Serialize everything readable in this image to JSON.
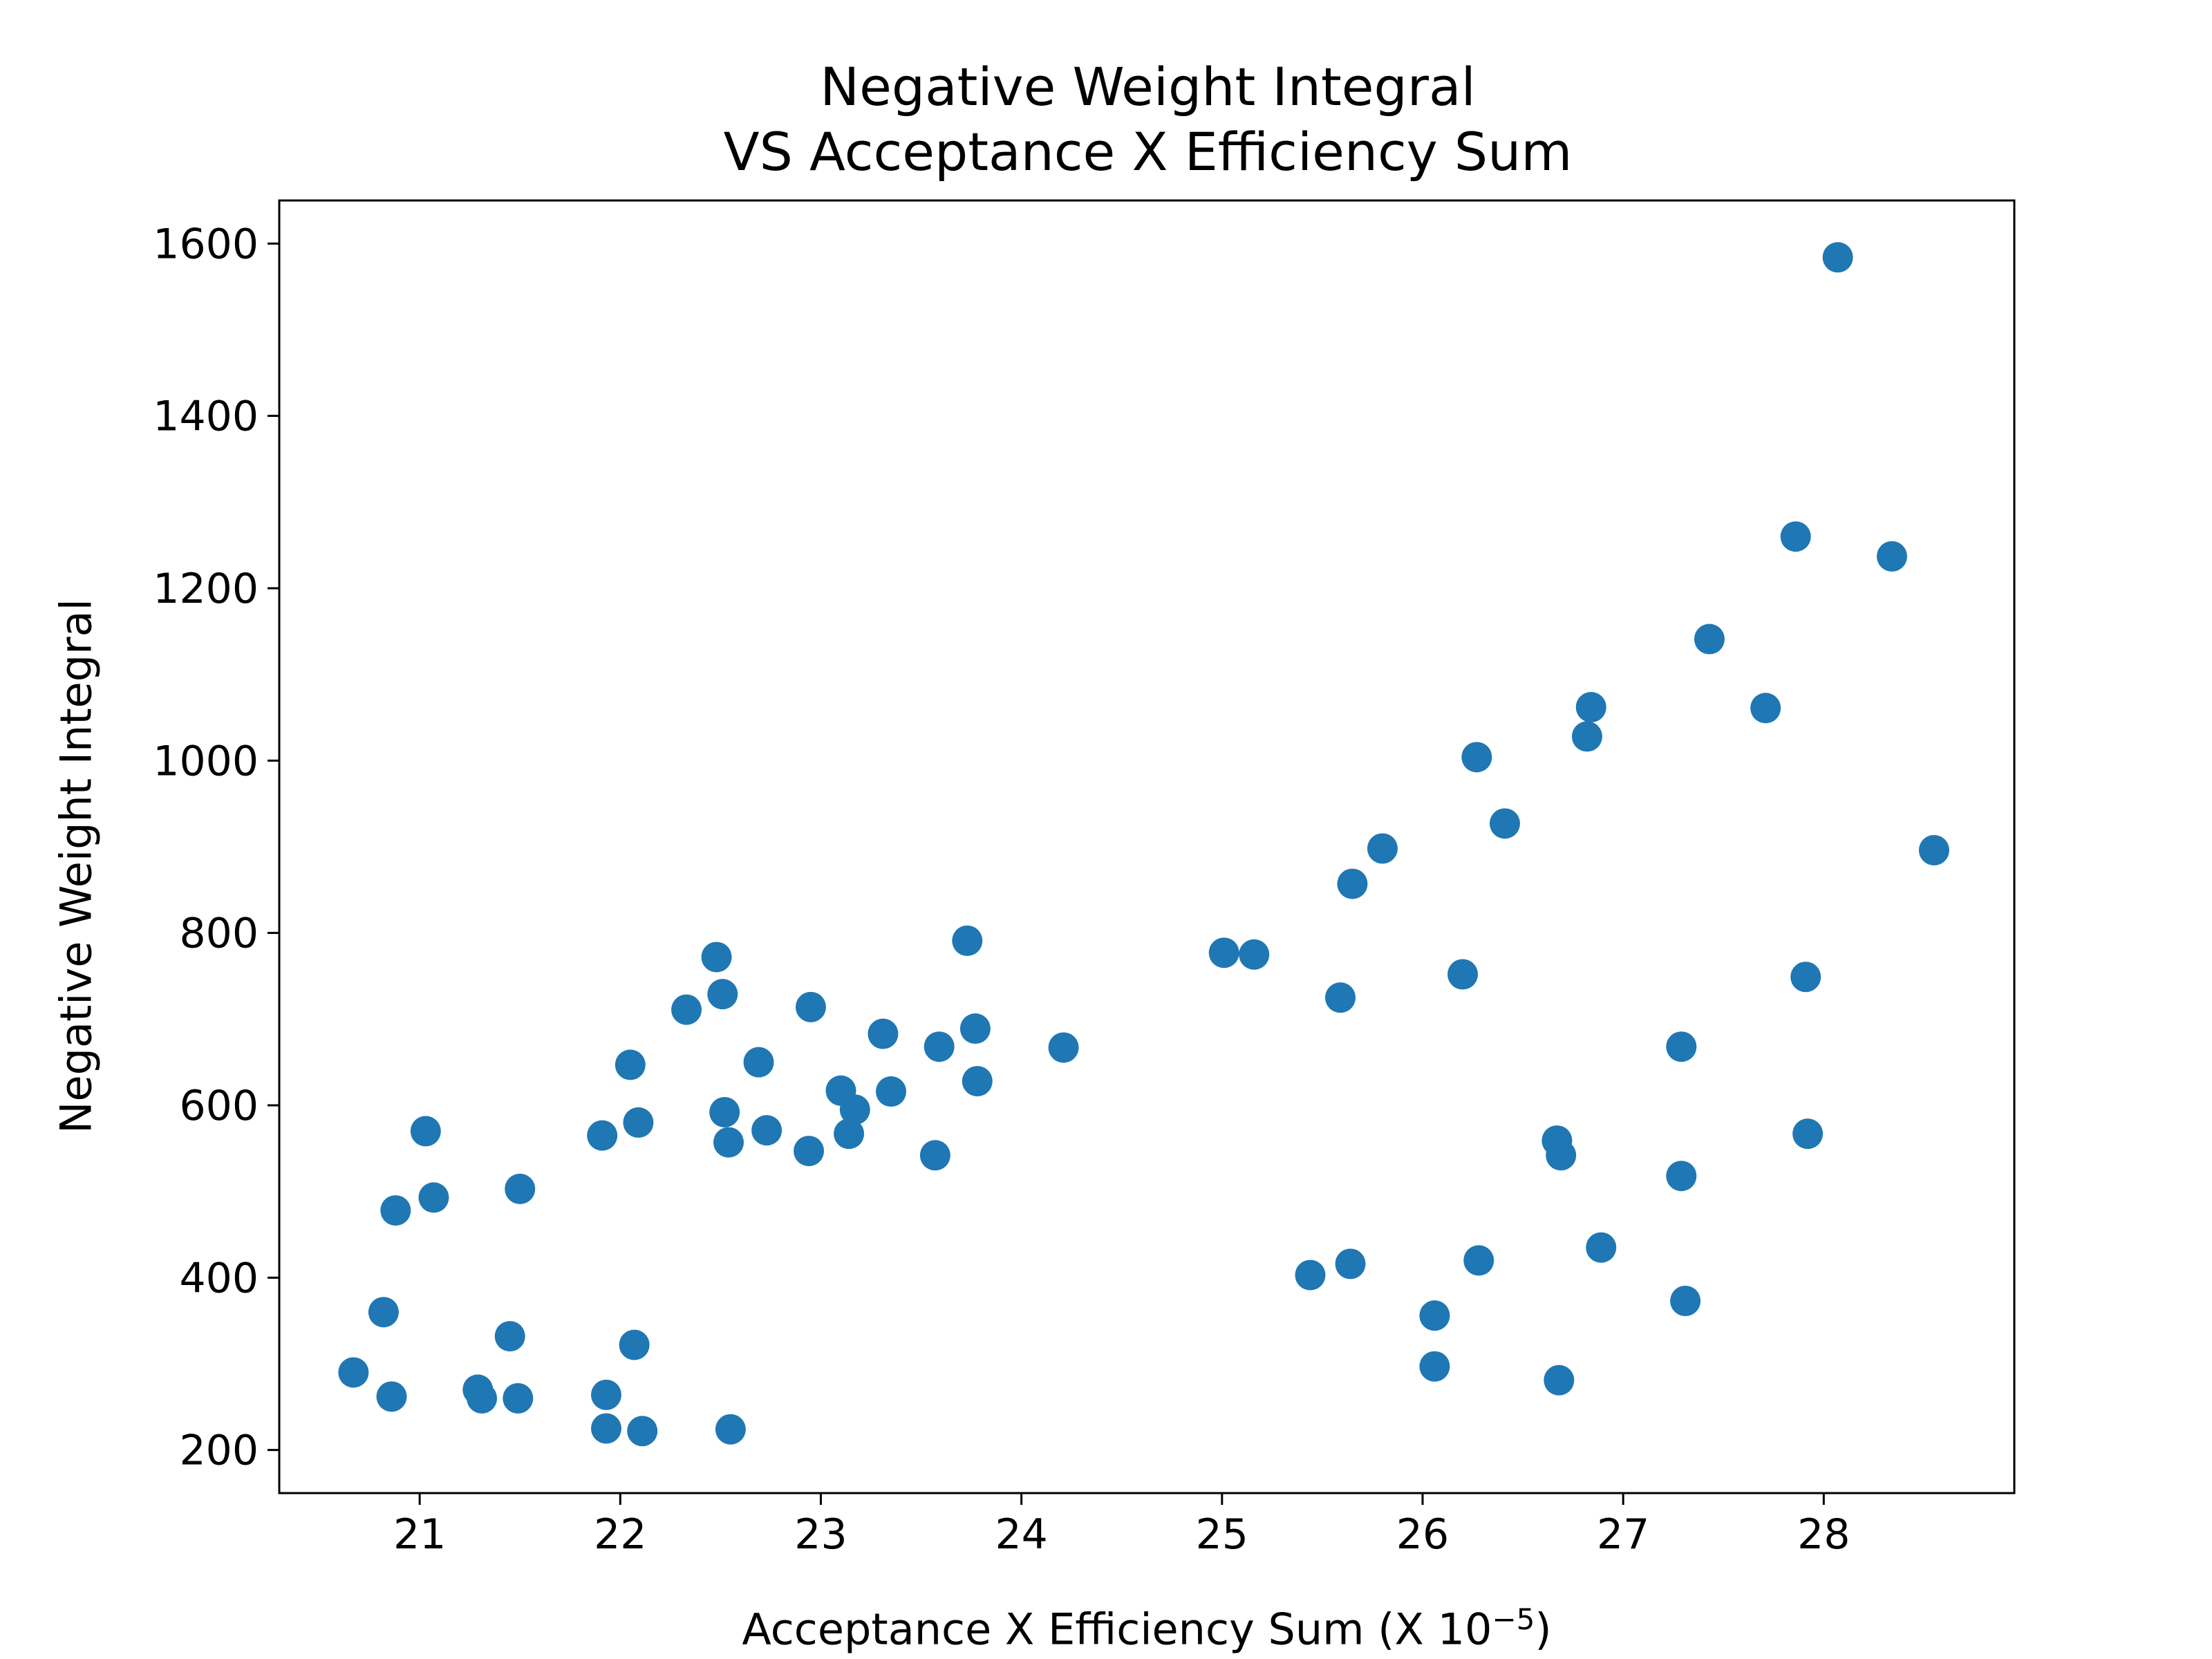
{
  "chart_data": {
    "type": "scatter",
    "title": [
      "Negative Weight Integral",
      "VS Acceptance X Efficiency Sum"
    ],
    "xlabel": "Acceptance X Efficiency Sum (X 10",
    "xlabel_exponent": "−5",
    "xlabel_close": ")",
    "ylabel": "Negative Weight Integral",
    "xlim": [
      20.3,
      28.95
    ],
    "ylim": [
      150,
      1650
    ],
    "x_ticks": [
      21,
      22,
      23,
      24,
      25,
      26,
      27,
      28
    ],
    "y_ticks": [
      200,
      400,
      600,
      800,
      1000,
      1200,
      1400,
      1600
    ],
    "marker_color": "#1f77b4",
    "grid": false,
    "legend": "none",
    "points": [
      {
        "x": 20.67,
        "y": 290
      },
      {
        "x": 20.82,
        "y": 360
      },
      {
        "x": 20.86,
        "y": 262
      },
      {
        "x": 20.88,
        "y": 478
      },
      {
        "x": 21.03,
        "y": 570
      },
      {
        "x": 21.07,
        "y": 493
      },
      {
        "x": 21.29,
        "y": 270
      },
      {
        "x": 21.31,
        "y": 260
      },
      {
        "x": 21.45,
        "y": 332
      },
      {
        "x": 21.49,
        "y": 260
      },
      {
        "x": 21.5,
        "y": 503
      },
      {
        "x": 21.91,
        "y": 565
      },
      {
        "x": 21.93,
        "y": 264
      },
      {
        "x": 21.93,
        "y": 225
      },
      {
        "x": 22.05,
        "y": 647
      },
      {
        "x": 22.07,
        "y": 322
      },
      {
        "x": 22.09,
        "y": 580
      },
      {
        "x": 22.11,
        "y": 222
      },
      {
        "x": 22.33,
        "y": 711
      },
      {
        "x": 22.48,
        "y": 772
      },
      {
        "x": 22.51,
        "y": 729
      },
      {
        "x": 22.52,
        "y": 592
      },
      {
        "x": 22.54,
        "y": 557
      },
      {
        "x": 22.55,
        "y": 224
      },
      {
        "x": 22.69,
        "y": 650
      },
      {
        "x": 22.73,
        "y": 571
      },
      {
        "x": 22.94,
        "y": 547
      },
      {
        "x": 22.95,
        "y": 714
      },
      {
        "x": 23.1,
        "y": 617
      },
      {
        "x": 23.14,
        "y": 567
      },
      {
        "x": 23.17,
        "y": 595
      },
      {
        "x": 23.31,
        "y": 683
      },
      {
        "x": 23.35,
        "y": 616
      },
      {
        "x": 23.57,
        "y": 542
      },
      {
        "x": 23.59,
        "y": 668
      },
      {
        "x": 23.73,
        "y": 791
      },
      {
        "x": 23.77,
        "y": 689
      },
      {
        "x": 23.78,
        "y": 628
      },
      {
        "x": 24.21,
        "y": 667
      },
      {
        "x": 25.01,
        "y": 777
      },
      {
        "x": 25.16,
        "y": 775
      },
      {
        "x": 25.44,
        "y": 403
      },
      {
        "x": 25.59,
        "y": 725
      },
      {
        "x": 25.64,
        "y": 416
      },
      {
        "x": 25.65,
        "y": 857
      },
      {
        "x": 25.8,
        "y": 898
      },
      {
        "x": 26.06,
        "y": 356
      },
      {
        "x": 26.06,
        "y": 297
      },
      {
        "x": 26.2,
        "y": 752
      },
      {
        "x": 26.27,
        "y": 1004
      },
      {
        "x": 26.28,
        "y": 420
      },
      {
        "x": 26.41,
        "y": 927
      },
      {
        "x": 26.67,
        "y": 559
      },
      {
        "x": 26.68,
        "y": 281
      },
      {
        "x": 26.69,
        "y": 542
      },
      {
        "x": 26.82,
        "y": 1028
      },
      {
        "x": 26.84,
        "y": 1062
      },
      {
        "x": 26.89,
        "y": 435
      },
      {
        "x": 27.29,
        "y": 668
      },
      {
        "x": 27.29,
        "y": 518
      },
      {
        "x": 27.31,
        "y": 373
      },
      {
        "x": 27.43,
        "y": 1141
      },
      {
        "x": 27.71,
        "y": 1061
      },
      {
        "x": 27.86,
        "y": 1260
      },
      {
        "x": 27.91,
        "y": 749
      },
      {
        "x": 27.92,
        "y": 567
      },
      {
        "x": 28.07,
        "y": 1584
      },
      {
        "x": 28.34,
        "y": 1237
      },
      {
        "x": 28.55,
        "y": 896
      }
    ]
  }
}
